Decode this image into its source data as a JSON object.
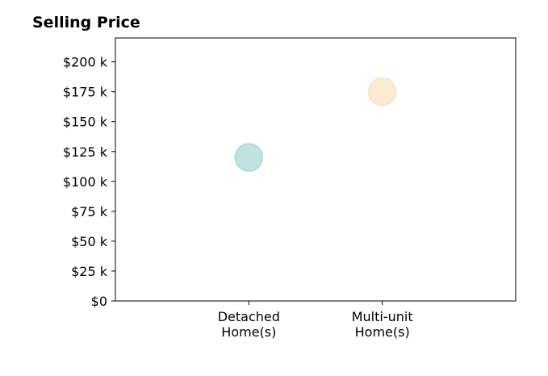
{
  "chart_data": {
    "type": "scatter",
    "title": "Selling Price",
    "xlabel": "",
    "ylabel": "",
    "categories": [
      "Detached\nHome(s)",
      "Multi-unit\nHome(s)"
    ],
    "points": [
      {
        "category": "Detached\nHome(s)",
        "y": 120000,
        "color": "#a8dad5"
      },
      {
        "category": "Multi-unit\nHome(s)",
        "y": 175000,
        "color": "#f7e5c3"
      }
    ],
    "ylim": [
      0,
      220000
    ],
    "yticks": [
      0,
      25000,
      50000,
      75000,
      100000,
      125000,
      150000,
      175000,
      200000
    ],
    "ytick_labels": [
      "$0",
      "$25 k",
      "$50 k",
      "$75 k",
      "$100 k",
      "$125 k",
      "$150 k",
      "$175 k",
      "$200 k"
    ],
    "grid": false,
    "legend": "none"
  }
}
